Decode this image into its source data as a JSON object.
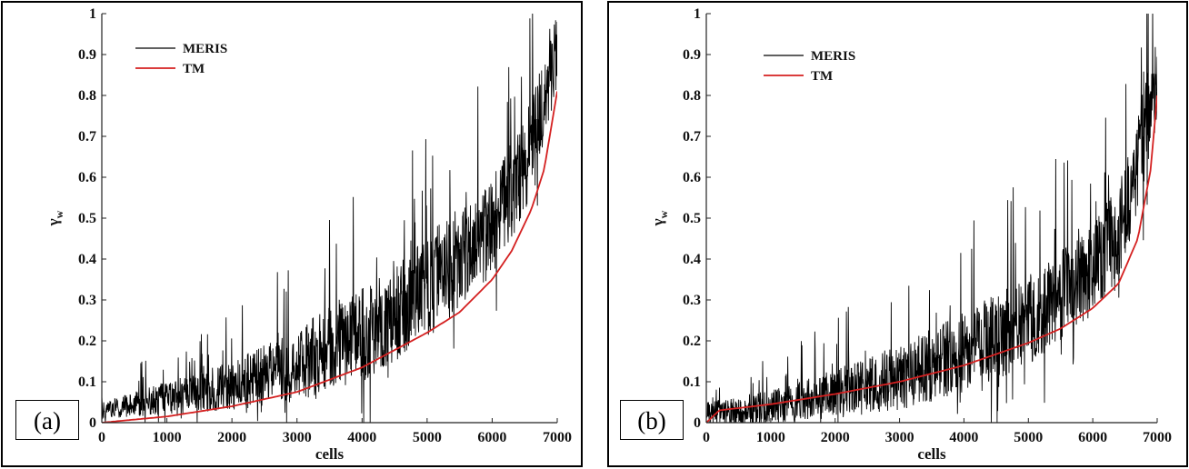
{
  "chart_data": [
    {
      "panel_label": "(a)",
      "type": "line",
      "xlabel": "cells",
      "ylabel": "γ",
      "ylabel_subscript": "w",
      "xlim": [
        0,
        7000
      ],
      "ylim": [
        0,
        1
      ],
      "xticks": [
        0,
        1000,
        2000,
        3000,
        4000,
        5000,
        6000,
        7000
      ],
      "yticks": [
        0,
        0.1,
        0.2,
        0.3,
        0.4,
        0.5,
        0.6,
        0.7,
        0.8,
        0.9,
        1
      ],
      "ytick_labels": [
        "0",
        "0.1",
        "0.2",
        "0.3",
        "0.4",
        "0.5",
        "0.6",
        "0.7",
        "0.8",
        "0.9",
        "1"
      ],
      "legend_position": "top-left",
      "series": [
        {
          "name": "MERIS",
          "color": "#000000",
          "style": "noisy",
          "trend_x": [
            0,
            1000,
            2000,
            3000,
            4000,
            5000,
            6000,
            6500,
            7000
          ],
          "trend_y": [
            0.03,
            0.06,
            0.09,
            0.14,
            0.22,
            0.33,
            0.48,
            0.63,
            0.9
          ],
          "spread": [
            0.02,
            0.04,
            0.06,
            0.09,
            0.12,
            0.13,
            0.12,
            0.12,
            0.1
          ]
        },
        {
          "name": "TM",
          "color": "#d42020",
          "style": "smooth",
          "x": [
            0,
            1000,
            2000,
            3000,
            4000,
            5000,
            5500,
            6000,
            6300,
            6600,
            6800,
            7000
          ],
          "y": [
            0.0,
            0.015,
            0.04,
            0.075,
            0.135,
            0.22,
            0.27,
            0.35,
            0.42,
            0.52,
            0.62,
            0.81
          ]
        }
      ]
    },
    {
      "panel_label": "(b)",
      "type": "line",
      "xlabel": "cells",
      "ylabel": "γ",
      "ylabel_subscript": "w",
      "xlim": [
        0,
        7000
      ],
      "ylim": [
        0,
        1
      ],
      "xticks": [
        0,
        1000,
        2000,
        3000,
        4000,
        5000,
        6000,
        7000
      ],
      "yticks": [
        0,
        0.1,
        0.2,
        0.3,
        0.4,
        0.5,
        0.6,
        0.7,
        0.8,
        0.9,
        1
      ],
      "ytick_labels": [
        "0",
        "0.1",
        "0.2",
        "0.3",
        "0.4",
        "0.5",
        "0.6",
        "0.7",
        "0.8",
        "0.9",
        "1"
      ],
      "legend_position": "top-left",
      "series": [
        {
          "name": "MERIS",
          "color": "#000000",
          "style": "noisy",
          "trend_x": [
            0,
            1000,
            2000,
            3000,
            4000,
            5000,
            6000,
            6500,
            7000
          ],
          "trend_y": [
            0.02,
            0.04,
            0.07,
            0.11,
            0.17,
            0.25,
            0.37,
            0.5,
            0.85
          ],
          "spread": [
            0.03,
            0.04,
            0.06,
            0.08,
            0.1,
            0.11,
            0.11,
            0.12,
            0.12
          ]
        },
        {
          "name": "TM",
          "color": "#d42020",
          "style": "smooth",
          "x": [
            0,
            200,
            1000,
            2000,
            3000,
            4000,
            5000,
            5500,
            6000,
            6400,
            6700,
            6900,
            7000
          ],
          "y": [
            0.0,
            0.03,
            0.045,
            0.07,
            0.1,
            0.14,
            0.195,
            0.23,
            0.28,
            0.34,
            0.45,
            0.62,
            0.8
          ]
        }
      ]
    }
  ]
}
